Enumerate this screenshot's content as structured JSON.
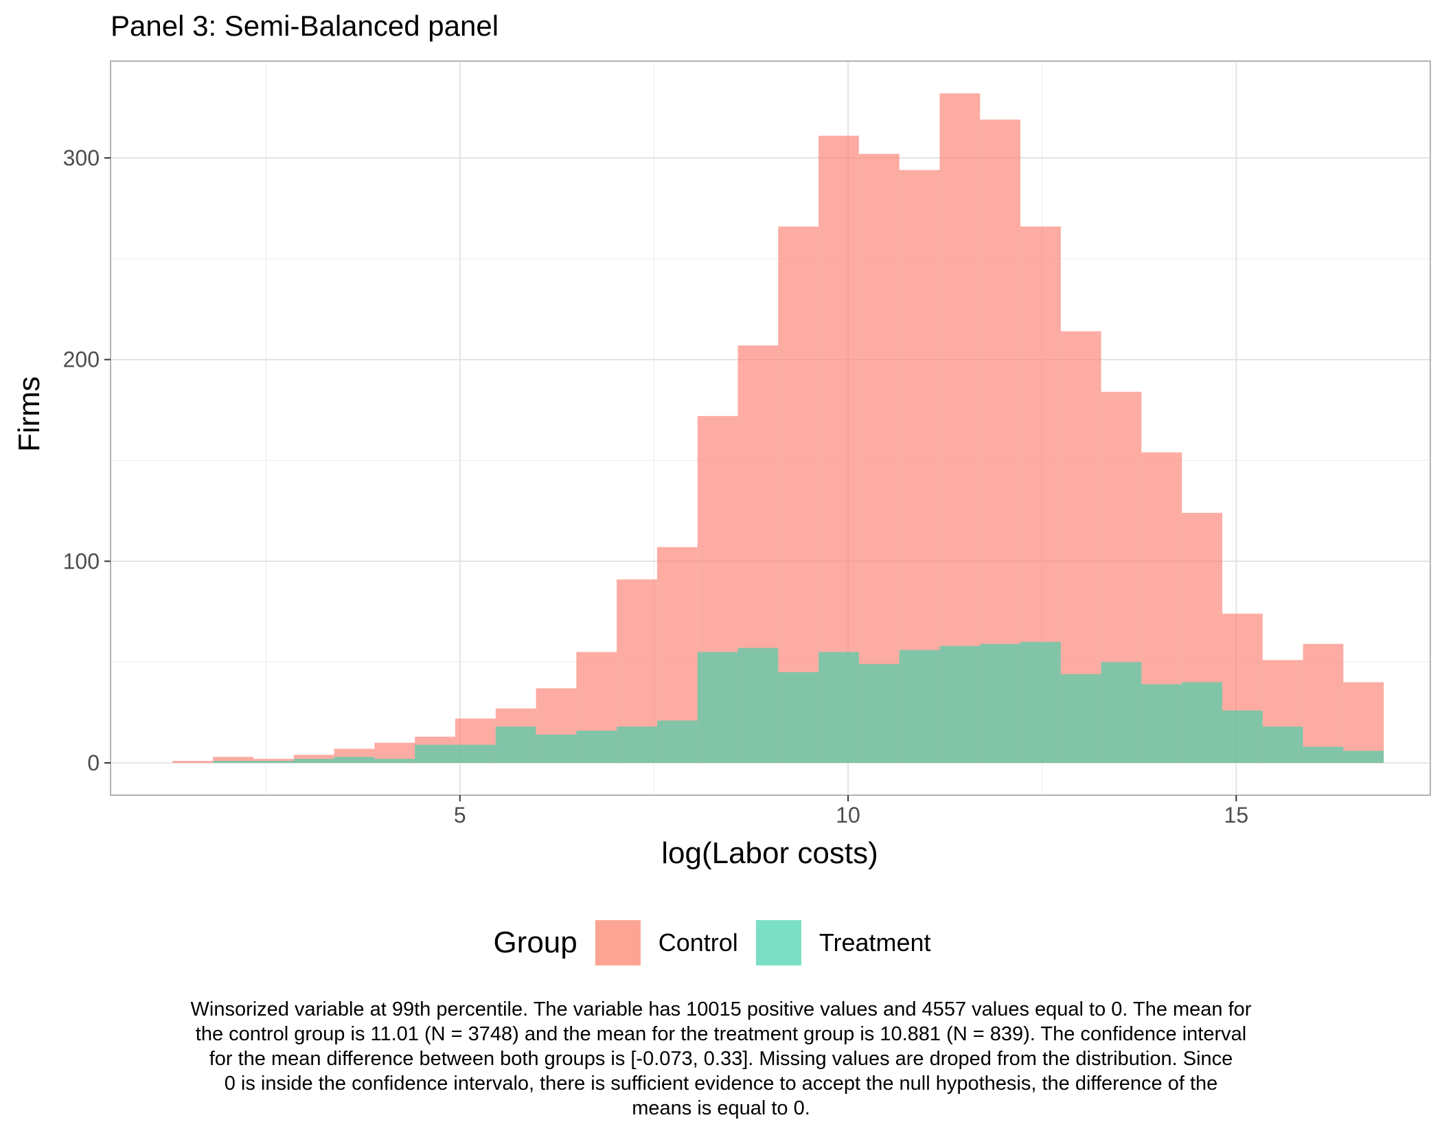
{
  "chart_data": {
    "type": "bar",
    "title": "Panel 3: Semi-Balanced panel",
    "xlabel": "log(Labor costs)",
    "ylabel": "Firms",
    "xlim": [
      0.5,
      17.5
    ],
    "ylim": [
      -16,
      348
    ],
    "x_ticks": [
      5,
      10,
      15
    ],
    "y_ticks": [
      0,
      100,
      200,
      300
    ],
    "grid": true,
    "bin_width": 0.52,
    "bin_starts": [
      1.3,
      1.82,
      2.34,
      2.86,
      3.38,
      3.9,
      4.42,
      4.94,
      5.46,
      5.98,
      6.5,
      7.02,
      7.54,
      8.06,
      8.58,
      9.1,
      9.62,
      10.14,
      10.66,
      11.18,
      11.7,
      12.22,
      12.74,
      13.26,
      13.78,
      14.3,
      14.82,
      15.34,
      15.86,
      16.38
    ],
    "series": [
      {
        "name": "Control",
        "color": "#FA8072",
        "values": [
          1,
          3,
          2,
          4,
          7,
          10,
          13,
          22,
          27,
          37,
          55,
          91,
          107,
          172,
          207,
          266,
          311,
          302,
          294,
          332,
          319,
          266,
          214,
          184,
          154,
          124,
          74,
          51,
          59,
          40
        ]
      },
      {
        "name": "Treatment",
        "color": "#40D1AA",
        "values": [
          0,
          1,
          1,
          2,
          3,
          2,
          9,
          9,
          18,
          14,
          16,
          18,
          21,
          55,
          57,
          45,
          55,
          49,
          56,
          58,
          59,
          60,
          44,
          50,
          39,
          40,
          26,
          18,
          8,
          6
        ]
      }
    ],
    "legend": {
      "title": "Group",
      "position": "bottom",
      "items": [
        "Control",
        "Treatment"
      ]
    }
  },
  "caption_lines": [
    "Winsorized variable at 99th percentile. The variable has 10015 positive values and 4557 values equal to 0. The mean for",
    "the control group is 11.01 (N = 3748) and the mean for the treatment group is 10.881 (N = 839). The confidence interval",
    "for the mean difference between both groups is [-0.073, 0.33]. Missing values are droped from the distribution. Since",
    "0 is inside the confidence intervalo, there is sufficient evidence to accept the null hypothesis, the difference of the",
    "means is equal to 0."
  ],
  "colors": {
    "control_fill": "#FA8072",
    "treatment_fill": "#40D1AA",
    "panel_border": "#B3B3B3",
    "grid_major": "#DDDDDD",
    "grid_minor": "#EEEEEE"
  }
}
